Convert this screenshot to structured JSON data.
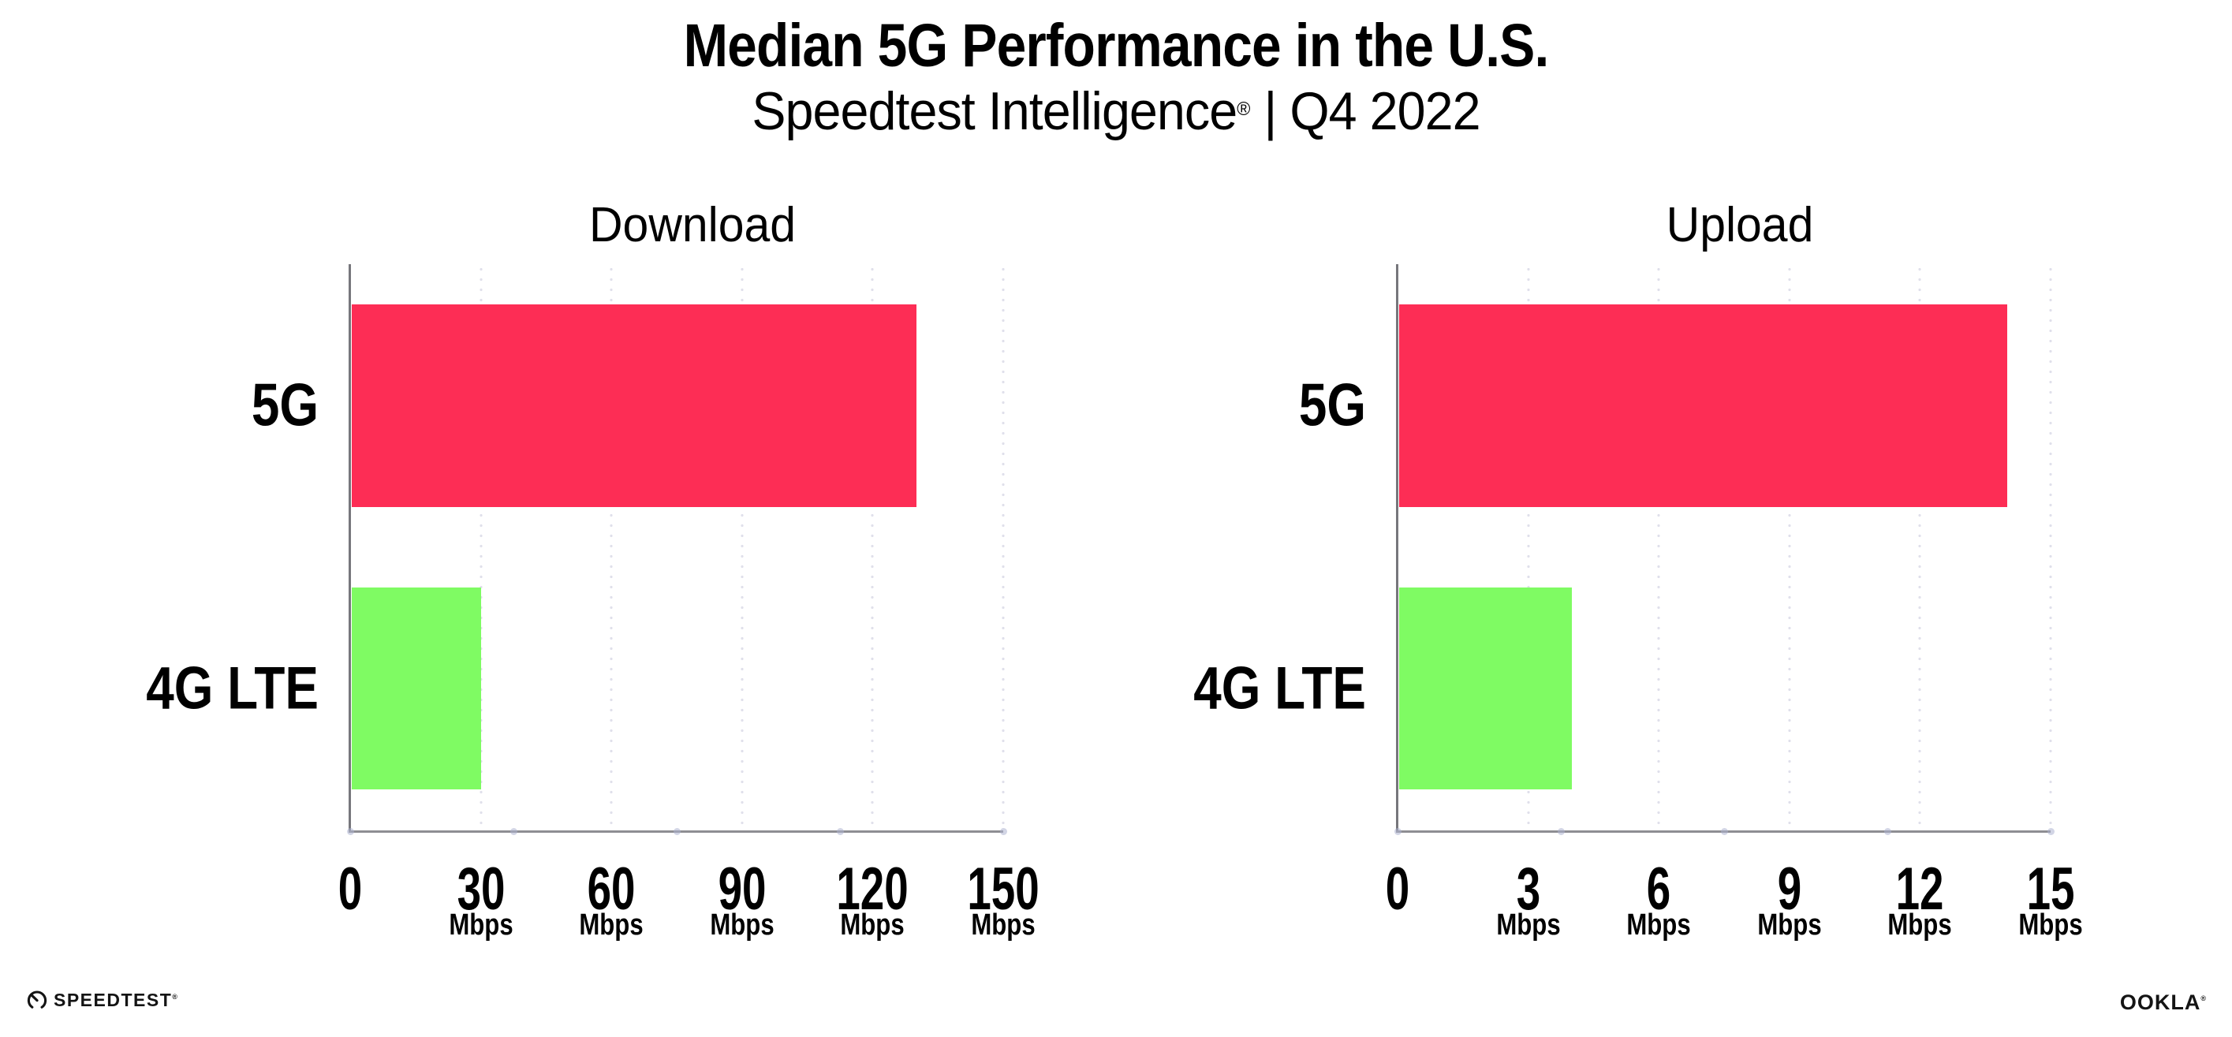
{
  "page": {
    "background": "#FFFFFF"
  },
  "header": {
    "title": "Median 5G Performance in the U.S.",
    "subtitle_brand": "Speedtest Intelligence",
    "subtitle_reg": "®",
    "subtitle_separator": "|",
    "subtitle_period": "Q4 2022"
  },
  "colors": {
    "bar_5g": "#FD2D55",
    "bar_4g_lte": "#7FFB63",
    "x_axis": "#8E8E93",
    "y_axis": "#77777C",
    "grid_dot": "#E0E0EB",
    "axis_quarter_dot": "rgba(173,178,208,0.55)",
    "text": "#000000"
  },
  "chart_data": [
    {
      "type": "bar",
      "orientation": "horizontal",
      "title": "Download",
      "categories": [
        "5G",
        "4G LTE"
      ],
      "values": [
        130,
        30
      ],
      "unit": "Mbps",
      "xlim": [
        0,
        150
      ],
      "xticks": [
        0,
        30,
        60,
        90,
        120,
        150
      ],
      "xtick_unit_suffix": "Mbps",
      "grid": "vertical-dotted",
      "legend": "none",
      "bar_colors": [
        "#FD2D55",
        "#7FFB63"
      ]
    },
    {
      "type": "bar",
      "orientation": "horizontal",
      "title": "Upload",
      "categories": [
        "5G",
        "4G LTE"
      ],
      "values": [
        14,
        4
      ],
      "unit": "Mbps",
      "xlim": [
        0,
        15
      ],
      "xticks": [
        0,
        3,
        6,
        9,
        12,
        15
      ],
      "xtick_unit_suffix": "Mbps",
      "grid": "vertical-dotted",
      "legend": "none",
      "bar_colors": [
        "#FD2D55",
        "#7FFB63"
      ]
    }
  ],
  "footer": {
    "speedtest_label": "SPEEDTEST",
    "speedtest_reg": "®",
    "ookla_label": "OOKLA",
    "ookla_reg": "®"
  }
}
